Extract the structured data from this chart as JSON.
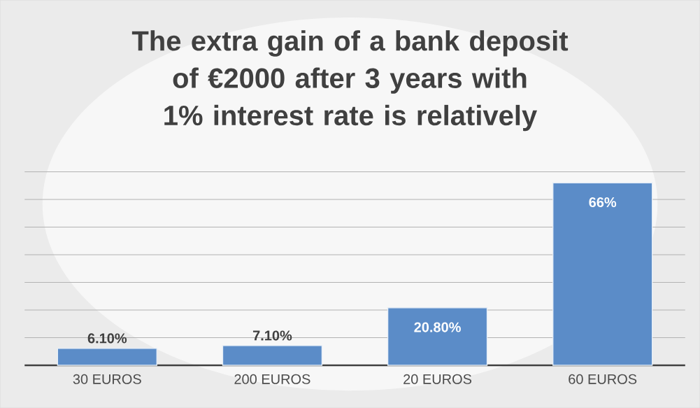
{
  "chart_data": {
    "type": "bar",
    "title": "The extra gain of a bank deposit of €2000 after 3 years with 1% interest rate is relatively",
    "categories": [
      "30 EUROS",
      "200 EUROS",
      "20 EUROS",
      "60 EUROS"
    ],
    "values": [
      6.1,
      7.1,
      20.8,
      66
    ],
    "value_labels": [
      "6.10%",
      "7.10%",
      "20.80%",
      "66%"
    ],
    "color": "#5b8cc8",
    "tick_labels": "x",
    "grid": "y"
  }
}
